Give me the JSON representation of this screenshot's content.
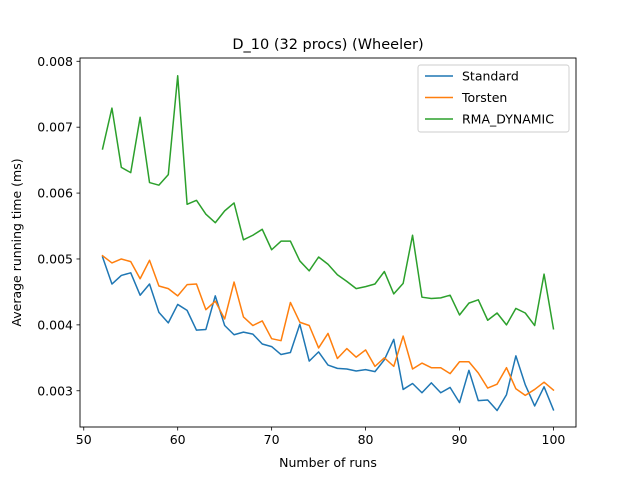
{
  "chart_data": {
    "type": "line",
    "title": "D_10 (32 procs) (Wheeler)",
    "xlabel": "Number of runs",
    "ylabel": "Average running time (ms)",
    "xlim": [
      49.6,
      102.4
    ],
    "ylim": [
      0.00245,
      0.00805
    ],
    "xticks": [
      50,
      60,
      70,
      80,
      90,
      100
    ],
    "yticks": [
      0.003,
      0.004,
      0.005,
      0.006,
      0.007,
      0.008
    ],
    "ytick_labels": [
      "0.003",
      "0.004",
      "0.005",
      "0.006",
      "0.007",
      "0.008"
    ],
    "grid": false,
    "legend_position": "top-right",
    "x": [
      52,
      53,
      54,
      55,
      56,
      57,
      58,
      59,
      60,
      61,
      62,
      63,
      64,
      65,
      66,
      67,
      68,
      69,
      70,
      71,
      72,
      73,
      74,
      75,
      76,
      77,
      78,
      79,
      80,
      81,
      82,
      83,
      84,
      85,
      86,
      87,
      88,
      89,
      90,
      91,
      92,
      93,
      94,
      95,
      96,
      97,
      98,
      99,
      100
    ],
    "series": [
      {
        "name": "Standard",
        "color": "#1f77b4",
        "values": [
          0.00503,
          0.00462,
          0.00475,
          0.00479,
          0.00445,
          0.00462,
          0.00419,
          0.00403,
          0.00431,
          0.00422,
          0.00392,
          0.00393,
          0.00444,
          0.00399,
          0.00385,
          0.00389,
          0.00386,
          0.00371,
          0.00367,
          0.00355,
          0.00358,
          0.00401,
          0.00345,
          0.00359,
          0.00339,
          0.00334,
          0.00333,
          0.0033,
          0.00332,
          0.00329,
          0.00347,
          0.00378,
          0.00302,
          0.00311,
          0.00297,
          0.00312,
          0.00297,
          0.00305,
          0.00282,
          0.00331,
          0.00285,
          0.00286,
          0.0027,
          0.00294,
          0.00353,
          0.00309,
          0.00277,
          0.00306,
          0.00271
        ]
      },
      {
        "name": "Torsten",
        "color": "#ff7f0e",
        "values": [
          0.00505,
          0.00494,
          0.005,
          0.00496,
          0.0047,
          0.00498,
          0.00459,
          0.00455,
          0.00444,
          0.00461,
          0.00462,
          0.00423,
          0.00436,
          0.00409,
          0.00465,
          0.00412,
          0.00399,
          0.00406,
          0.00379,
          0.00376,
          0.00434,
          0.00404,
          0.00399,
          0.00365,
          0.00387,
          0.00349,
          0.00364,
          0.00351,
          0.00362,
          0.00337,
          0.0035,
          0.00337,
          0.00383,
          0.00333,
          0.00342,
          0.00335,
          0.00335,
          0.00326,
          0.00344,
          0.00344,
          0.00327,
          0.00304,
          0.0031,
          0.00335,
          0.00303,
          0.00293,
          0.00302,
          0.00313,
          0.00301
        ]
      },
      {
        "name": "RMA_DYNAMIC",
        "color": "#2ca02c",
        "values": [
          0.00667,
          0.00729,
          0.00639,
          0.00631,
          0.00715,
          0.00616,
          0.00612,
          0.00628,
          0.00778,
          0.00583,
          0.00589,
          0.00568,
          0.00555,
          0.00573,
          0.00585,
          0.00529,
          0.00536,
          0.00545,
          0.00514,
          0.00527,
          0.00527,
          0.00497,
          0.00482,
          0.00503,
          0.00492,
          0.00476,
          0.00466,
          0.00455,
          0.00458,
          0.00462,
          0.00481,
          0.00447,
          0.00463,
          0.00536,
          0.00442,
          0.0044,
          0.00441,
          0.00445,
          0.00415,
          0.00433,
          0.00438,
          0.00407,
          0.00418,
          0.004,
          0.00425,
          0.00418,
          0.00399,
          0.00477,
          0.00394
        ]
      }
    ]
  }
}
